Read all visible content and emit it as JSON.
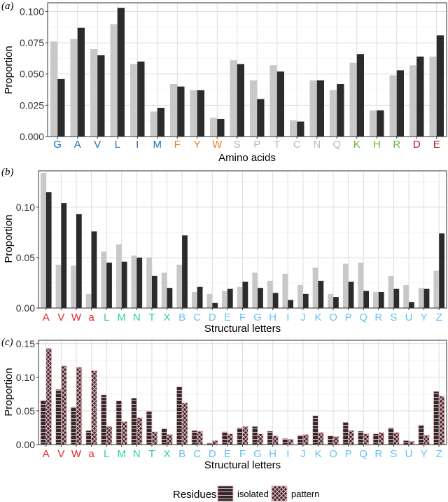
{
  "colors": {
    "light_bar": "#c8c8c8",
    "dark_bar": "#2b2b2b",
    "pattern_stroke": "#f4b6c2",
    "grid_major": "#dedede",
    "grid_minor": "#efefef",
    "panel_border": "#333333",
    "blue": "#1f6fb2",
    "orange": "#f07b1d",
    "gray_label": "#b8b8b8",
    "green": "#6db33f",
    "darkred": "#b01c1c",
    "red": "#e8262a",
    "teal": "#2bd3a0",
    "skyblue": "#66c2ef"
  },
  "chart_data": [
    {
      "panel": "(a)",
      "type": "bar",
      "ylabel": "Proportion",
      "xlabel": "Amino acids",
      "ylim": [
        0,
        0.107
      ],
      "yticks": [
        "0.000",
        "0.025",
        "0.050",
        "0.075",
        "0.100"
      ],
      "yticks_values": [
        0,
        0.025,
        0.05,
        0.075,
        0.1
      ],
      "grid": true,
      "categories": [
        "G",
        "A",
        "V",
        "L",
        "I",
        "M",
        "F",
        "Y",
        "W",
        "S",
        "P",
        "T",
        "C",
        "N",
        "Q",
        "K",
        "H",
        "R",
        "D",
        "E"
      ],
      "category_colors": [
        "blue",
        "blue",
        "blue",
        "blue",
        "blue",
        "blue",
        "orange",
        "orange",
        "orange",
        "gray_label",
        "gray_label",
        "gray_label",
        "gray_label",
        "gray_label",
        "gray_label",
        "green",
        "green",
        "green",
        "darkred",
        "darkred"
      ],
      "series": [
        {
          "values": [
            0.076,
            0.078,
            0.07,
            0.09,
            0.058,
            0.02,
            0.042,
            0.037,
            0.015,
            0.061,
            0.045,
            0.057,
            0.013,
            0.045,
            0.037,
            0.059,
            0.021,
            0.049,
            0.057,
            0.064
          ]
        },
        {
          "values": [
            0.046,
            0.087,
            0.065,
            0.103,
            0.06,
            0.023,
            0.04,
            0.037,
            0.014,
            0.058,
            0.03,
            0.052,
            0.012,
            0.045,
            0.042,
            0.066,
            0.021,
            0.053,
            0.064,
            0.081
          ]
        }
      ]
    },
    {
      "panel": "(b)",
      "type": "bar",
      "ylabel": "Proportion",
      "xlabel": "Structural letters",
      "ylim": [
        0,
        0.136
      ],
      "yticks": [
        "0.00",
        "0.05",
        "0.10"
      ],
      "yticks_values": [
        0,
        0.05,
        0.1
      ],
      "grid": true,
      "categories": [
        "A",
        "V",
        "W",
        "a",
        "L",
        "M",
        "N",
        "T",
        "X",
        "B",
        "C",
        "D",
        "E",
        "F",
        "G",
        "H",
        "I",
        "J",
        "K",
        "O",
        "P",
        "Q",
        "R",
        "S",
        "U",
        "Y",
        "Z"
      ],
      "category_colors": [
        "red",
        "red",
        "red",
        "red",
        "teal",
        "teal",
        "teal",
        "teal",
        "teal",
        "skyblue",
        "skyblue",
        "skyblue",
        "skyblue",
        "skyblue",
        "skyblue",
        "skyblue",
        "skyblue",
        "skyblue",
        "skyblue",
        "skyblue",
        "skyblue",
        "skyblue",
        "skyblue",
        "skyblue",
        "skyblue",
        "skyblue",
        "skyblue"
      ],
      "series": [
        {
          "values": [
            0.134,
            0.043,
            0.042,
            0.014,
            0.056,
            0.063,
            0.052,
            0.05,
            0.035,
            0.043,
            0.016,
            0.014,
            0.017,
            0.021,
            0.035,
            0.027,
            0.034,
            0.023,
            0.04,
            0.014,
            0.044,
            0.045,
            0.016,
            0.032,
            0.023,
            0.02,
            0.037
          ]
        },
        {
          "values": [
            0.115,
            0.104,
            0.093,
            0.076,
            0.045,
            0.046,
            0.05,
            0.032,
            0.02,
            0.072,
            0.021,
            0.005,
            0.019,
            0.026,
            0.02,
            0.015,
            0.008,
            0.014,
            0.027,
            0.011,
            0.026,
            0.017,
            0.016,
            0.019,
            0.006,
            0.019,
            0.074
          ]
        }
      ]
    },
    {
      "panel": "(c)",
      "type": "bar",
      "ylabel": "Proportion",
      "xlabel": "Structural letters",
      "ylim": [
        0,
        0.155
      ],
      "yticks": [
        "0.00",
        "0.05",
        "0.10",
        "0.15"
      ],
      "yticks_values": [
        0,
        0.05,
        0.1,
        0.15
      ],
      "grid": true,
      "legend": {
        "placement": "bottom",
        "title": "Residues",
        "items": [
          "isolated",
          "pattern"
        ]
      },
      "categories": [
        "A",
        "V",
        "W",
        "a",
        "L",
        "M",
        "N",
        "T",
        "X",
        "B",
        "C",
        "D",
        "E",
        "F",
        "G",
        "H",
        "I",
        "J",
        "K",
        "O",
        "P",
        "Q",
        "R",
        "S",
        "U",
        "Y",
        "Z"
      ],
      "category_colors": [
        "red",
        "red",
        "red",
        "red",
        "teal",
        "teal",
        "teal",
        "teal",
        "teal",
        "skyblue",
        "skyblue",
        "skyblue",
        "skyblue",
        "skyblue",
        "skyblue",
        "skyblue",
        "skyblue",
        "skyblue",
        "skyblue",
        "skyblue",
        "skyblue",
        "skyblue",
        "skyblue",
        "skyblue",
        "skyblue",
        "skyblue",
        "skyblue"
      ],
      "series": [
        {
          "name": "isolated",
          "values": [
            0.066,
            0.082,
            0.056,
            0.021,
            0.074,
            0.065,
            0.069,
            0.05,
            0.024,
            0.086,
            0.021,
            0.002,
            0.019,
            0.025,
            0.027,
            0.02,
            0.009,
            0.014,
            0.043,
            0.013,
            0.033,
            0.02,
            0.016,
            0.025,
            0.006,
            0.029,
            0.079
          ]
        },
        {
          "name": "pattern",
          "values": [
            0.143,
            0.117,
            0.115,
            0.11,
            0.027,
            0.034,
            0.04,
            0.019,
            0.015,
            0.062,
            0.02,
            0.006,
            0.016,
            0.027,
            0.016,
            0.013,
            0.008,
            0.015,
            0.018,
            0.012,
            0.021,
            0.016,
            0.018,
            0.018,
            0.005,
            0.014,
            0.072
          ]
        }
      ]
    }
  ]
}
